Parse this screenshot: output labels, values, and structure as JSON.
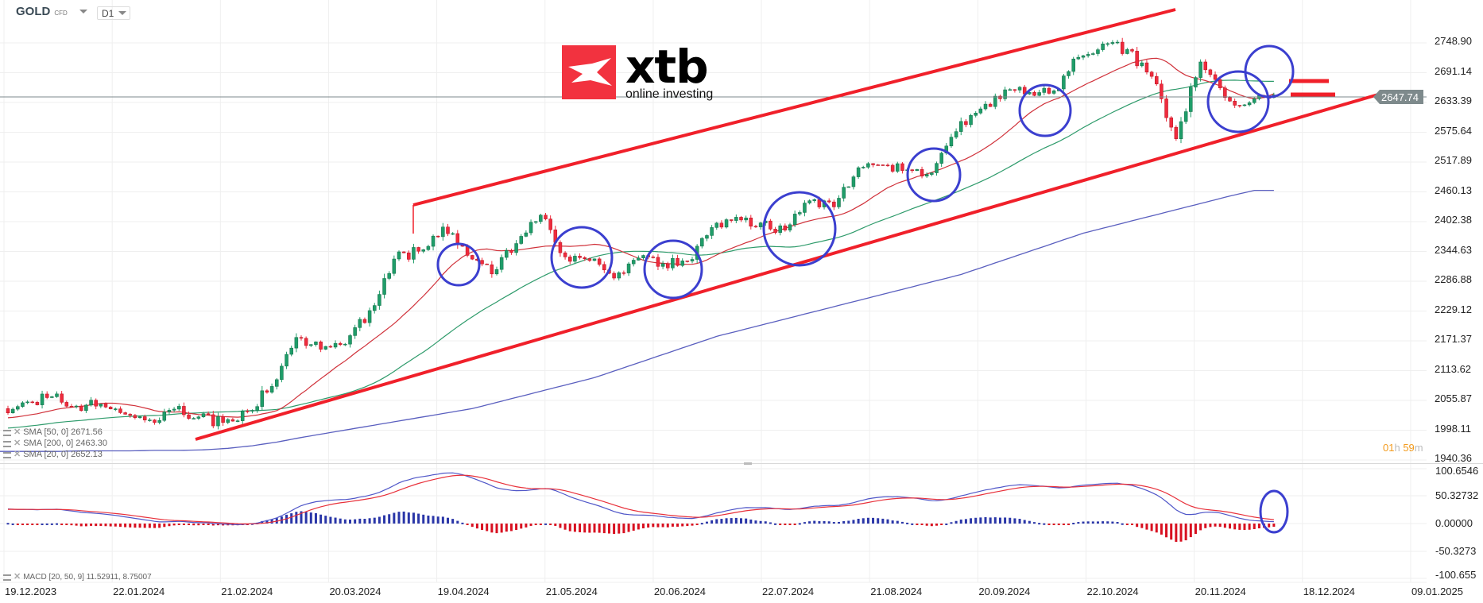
{
  "header": {
    "symbol": "GOLD",
    "instrument_type": "CFD",
    "timeframe": "D1"
  },
  "logo": {
    "brand": "xtb",
    "tagline": "online investing"
  },
  "price_axis": {
    "labels": [
      "2748.90",
      "2691.14",
      "2633.39",
      "2575.64",
      "2517.89",
      "2460.13",
      "2402.38",
      "2344.63",
      "2286.88",
      "2229.12",
      "2171.37",
      "2113.62",
      "2055.87",
      "1998.11",
      "1940.36"
    ]
  },
  "current_price": "2647.74",
  "macd_axis": {
    "labels": [
      "100.6546",
      "50.32732",
      "0.00000",
      "-50.3273",
      "-100.655"
    ]
  },
  "date_axis": [
    "19.12.2023",
    "22.01.2024",
    "21.02.2024",
    "20.03.2024",
    "19.04.2024",
    "21.05.2024",
    "20.06.2024",
    "22.07.2024",
    "21.08.2024",
    "20.09.2024",
    "22.10.2024",
    "20.11.2024",
    "18.12.2024",
    "09.01.2025"
  ],
  "indicators": {
    "sma50": "SMA [50, 0] 2671.56",
    "sma200": "SMA [200, 0] 2463.30",
    "sma20": "SMA [20, 0] 2652.13",
    "macd": "MACD [20, 50, 9] 11.52911,  8.75007"
  },
  "timer": {
    "hours": "01",
    "h": "h",
    "minutes": "59",
    "m": "m"
  },
  "colors": {
    "up": "#1f9d69",
    "down": "#ef2b3d",
    "sma20": "#d0313a",
    "sma50": "#2e9b6b",
    "sma200": "#5a5fbf",
    "annotation_red": "#f0202a",
    "annotation_circle": "#3b3fcf",
    "macd_line": "#4f56c8",
    "signal_line": "#e8303a",
    "price_line": "#7e8a8c"
  },
  "chart_data": {
    "type": "candlestick",
    "ylim": [
      1940.36,
      2748.9
    ],
    "macd_ylim": [
      -100.655,
      100.6546
    ],
    "weekly_close": [
      2053,
      2063,
      2045,
      2049,
      2029,
      2018,
      2039,
      2024,
      2013,
      2035,
      2083,
      2178,
      2155,
      2165,
      2230,
      2330,
      2345,
      2392,
      2337,
      2301,
      2360,
      2415,
      2334,
      2327,
      2293,
      2332,
      2321,
      2326,
      2391,
      2411,
      2400,
      2386,
      2443,
      2431,
      2507,
      2512,
      2503,
      2497,
      2577,
      2621,
      2658,
      2653,
      2656,
      2721,
      2747,
      2736,
      2684,
      2563,
      2712,
      2643,
      2633,
      2648
    ],
    "sma200_weekly": [
      1957,
      1957,
      1957,
      1958,
      1958,
      1958,
      1959,
      1959,
      1960,
      1963,
      1968,
      1975,
      1984,
      1992,
      2000,
      2008,
      2016,
      2024,
      2032,
      2040,
      2052,
      2064,
      2076,
      2088,
      2100,
      2116,
      2132,
      2148,
      2164,
      2180,
      2192,
      2204,
      2216,
      2228,
      2240,
      2252,
      2264,
      2276,
      2288,
      2300,
      2316,
      2332,
      2348,
      2364,
      2380,
      2392,
      2404,
      2416,
      2428,
      2440,
      2452,
      2463
    ],
    "annotations": [
      "ascending channel",
      "support and resistance levels",
      "highlighted consolidation zones"
    ],
    "grid": true
  }
}
